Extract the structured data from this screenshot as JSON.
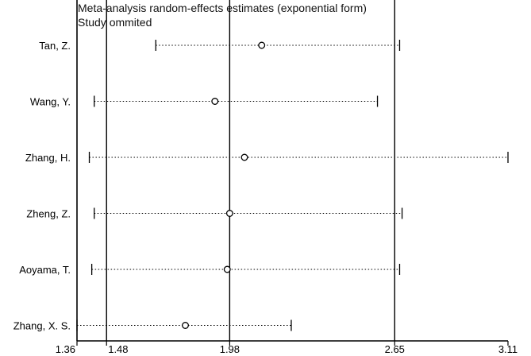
{
  "chart_data": {
    "type": "forest",
    "title": "Meta-analysis random-effects estimates (exponential form)",
    "subtitle": "Study ommited",
    "xlim": [
      1.36,
      3.11
    ],
    "xticks": [
      "1.36",
      "1.48",
      "1.98",
      "2.65",
      "3.11"
    ],
    "reference_lines": [
      1.48,
      1.98,
      2.65
    ],
    "studies": [
      {
        "label": "Tan, Z.",
        "estimate": 2.11,
        "lower": 1.68,
        "upper": 2.67
      },
      {
        "label": "Wang, Y.",
        "estimate": 1.92,
        "lower": 1.43,
        "upper": 2.58
      },
      {
        "label": "Zhang, H.",
        "estimate": 2.04,
        "lower": 1.41,
        "upper": 3.11
      },
      {
        "label": "Zheng, Z.",
        "estimate": 1.98,
        "lower": 1.43,
        "upper": 2.68
      },
      {
        "label": "Aoyama, T.",
        "estimate": 1.97,
        "lower": 1.42,
        "upper": 2.67
      },
      {
        "label": "Zhang, X. S.",
        "estimate": 1.8,
        "lower": 1.36,
        "upper": 2.23
      }
    ]
  }
}
